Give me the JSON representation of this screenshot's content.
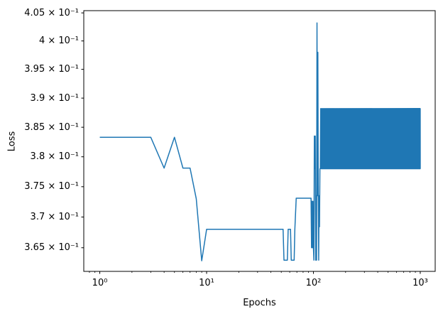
{
  "chart_data": {
    "type": "line",
    "title": "",
    "xlabel": "Epochs",
    "ylabel": "Loss",
    "x_scale": "log",
    "y_scale": "log",
    "xlim": [
      0.708,
      1380
    ],
    "ylim": [
      0.3612,
      0.4054
    ],
    "grid": false,
    "legend": null,
    "line_color": "#1f77b4",
    "line_width": 1.5,
    "axis_color": "#000000",
    "x_ticks": [
      {
        "v": 1,
        "label": "10⁰"
      },
      {
        "v": 10,
        "label": "10¹"
      },
      {
        "v": 100,
        "label": "10²"
      },
      {
        "v": 1000,
        "label": "10³"
      }
    ],
    "x_minor_subs": [
      2,
      3,
      4,
      5,
      6,
      7,
      8,
      9
    ],
    "x_minor_extra": [
      0.8,
      0.9
    ],
    "y_ticks": [
      {
        "v": 0.405,
        "label": "4.05 × 10⁻¹"
      },
      {
        "v": 0.4,
        "label": "4 × 10⁻¹"
      },
      {
        "v": 0.395,
        "label": "3.95 × 10⁻¹"
      },
      {
        "v": 0.39,
        "label": "3.9 × 10⁻¹"
      },
      {
        "v": 0.385,
        "label": "3.85 × 10⁻¹"
      },
      {
        "v": 0.38,
        "label": "3.8 × 10⁻¹"
      },
      {
        "v": 0.375,
        "label": "3.75 × 10⁻¹"
      },
      {
        "v": 0.37,
        "label": "3.7 × 10⁻¹"
      },
      {
        "v": 0.365,
        "label": "3.65 × 10⁻¹"
      }
    ],
    "series": [
      {
        "name": "loss",
        "points": [
          [
            1,
            0.3833
          ],
          [
            2,
            0.3833
          ],
          [
            3,
            0.3833
          ],
          [
            4,
            0.3781
          ],
          [
            5,
            0.3833
          ],
          [
            6,
            0.3781
          ],
          [
            7,
            0.3781
          ],
          [
            8,
            0.373
          ],
          [
            9,
            0.3629
          ],
          [
            10,
            0.368
          ],
          [
            52,
            0.368
          ],
          [
            53,
            0.363
          ],
          [
            57,
            0.363
          ],
          [
            58,
            0.368
          ],
          [
            61,
            0.368
          ],
          [
            62,
            0.363
          ],
          [
            66,
            0.363
          ],
          [
            67,
            0.368
          ],
          [
            69,
            0.3731
          ],
          [
            95,
            0.3731
          ],
          [
            96,
            0.365
          ],
          [
            97,
            0.3726
          ],
          [
            98,
            0.365
          ],
          [
            99,
            0.3726
          ],
          [
            100,
            0.365
          ],
          [
            101,
            0.363
          ],
          [
            102,
            0.3835
          ],
          [
            103,
            0.378
          ],
          [
            104,
            0.3835
          ],
          [
            105,
            0.363
          ],
          [
            106,
            0.3735
          ],
          [
            107,
            0.363
          ],
          [
            108,
            0.4032
          ],
          [
            109,
            0.3735
          ],
          [
            110,
            0.398
          ],
          [
            111,
            0.3735
          ],
          [
            112,
            0.363
          ],
          [
            113,
            0.3735
          ],
          [
            114,
            0.3684
          ],
          [
            115,
            0.378
          ]
        ],
        "oscillation": {
          "from": 116,
          "to": 1000,
          "step": 1,
          "low": 0.378,
          "high": 0.3882,
          "start_with": "low"
        }
      }
    ]
  }
}
